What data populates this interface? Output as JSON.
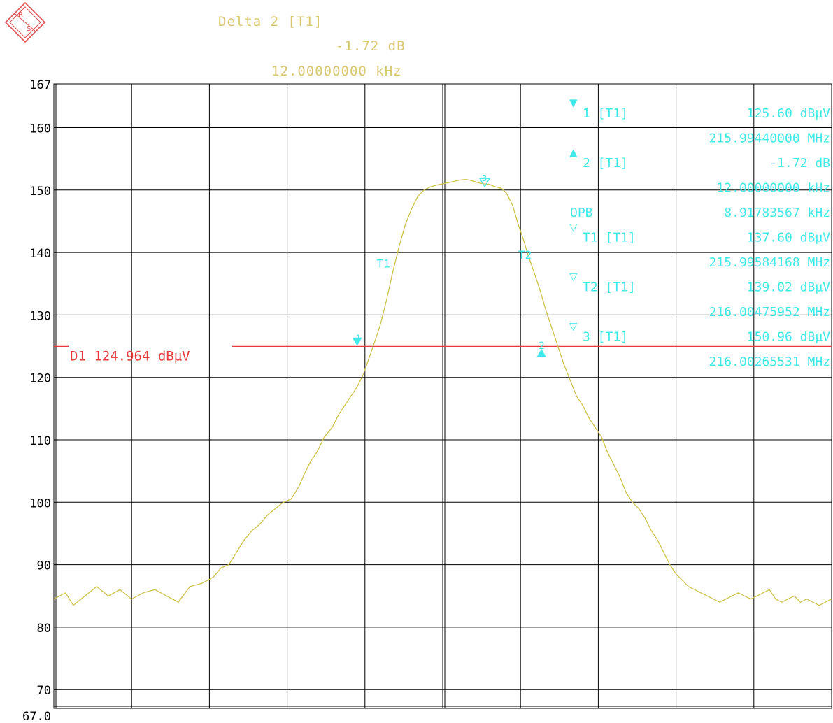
{
  "colors": {
    "header": "#d9c76e",
    "trace": "#cfc24a",
    "marker": "#40e8ea",
    "display_line": "#e83a3a",
    "grid": "#000000",
    "axis_text": "#000000",
    "logo": "#e65050"
  },
  "logo": {
    "text": "R&S",
    "icon": "rohde-schwarz-logo"
  },
  "header": {
    "line1": "Delta 2 [T1]",
    "line2": "-1.72 dB",
    "line3": "12.00000000 kHz"
  },
  "display_line": {
    "label": "D1 124.964 dBµV",
    "level": 124.964
  },
  "marker_info": [
    {
      "symbol": "▼",
      "name": "1 [T1]",
      "value": "125.60 dBµV",
      "sub": "215.99440000 MHz"
    },
    {
      "symbol": "▲",
      "name": "2 [T1]",
      "value": "-1.72 dB",
      "sub": "12.00000000 kHz"
    },
    {
      "symbol": "",
      "name": "OPB",
      "value": "8.91783567 kHz",
      "sub": ""
    },
    {
      "symbol": "▽",
      "name": "T1 [T1]",
      "value": "137.60 dBµV",
      "sub": "215.99584168 MHz"
    },
    {
      "symbol": "▽",
      "name": "T2 [T1]",
      "value": "139.02 dBµV",
      "sub": "216.00475952 MHz"
    },
    {
      "symbol": "▽",
      "name": "3 [T1]",
      "value": "150.96 dBµV",
      "sub": "216.00265531 MHz"
    }
  ],
  "chart_data": {
    "type": "line",
    "title": "",
    "xlabel": "",
    "ylabel": "",
    "ylim": [
      67.0,
      167
    ],
    "xlim": [
      0,
      1000
    ],
    "y_ticks": [
      70,
      80,
      90,
      100,
      110,
      120,
      130,
      140,
      150,
      160,
      167
    ],
    "y_tick_labels": [
      "70",
      "80",
      "90",
      "100",
      "110",
      "120",
      "130",
      "140",
      "150",
      "160",
      "167"
    ],
    "y_bottom_label": "67.0",
    "grid": true,
    "legend": "none",
    "series": [
      {
        "x": [
          0,
          15,
          25,
          40,
          55,
          70,
          85,
          100,
          115,
          130,
          145,
          160,
          175,
          190,
          205,
          215,
          225,
          235,
          245,
          255,
          265,
          275,
          285,
          295,
          305,
          315,
          322,
          330,
          338,
          348,
          358,
          366,
          374,
          382,
          390,
          398,
          405,
          412,
          420,
          428,
          436,
          444,
          452,
          460,
          468,
          476,
          484,
          492,
          500,
          508,
          515,
          522,
          530,
          537,
          545,
          552,
          560,
          568,
          575,
          582,
          590,
          597,
          604,
          610,
          617,
          625,
          632,
          640,
          648,
          656,
          664,
          672,
          680,
          688,
          696,
          704,
          712,
          720,
          728,
          736,
          744,
          752,
          760,
          768,
          776,
          784,
          792,
          800,
          808,
          816,
          824,
          832,
          840,
          848,
          856,
          864,
          872,
          880,
          888,
          896,
          904,
          912,
          920,
          928,
          936,
          944,
          952,
          960,
          968,
          976,
          984,
          992,
          1000
        ],
        "y": [
          84.5,
          85.5,
          83.5,
          85,
          86.5,
          85,
          86,
          84.5,
          85.5,
          86,
          85,
          84,
          86.5,
          87,
          88,
          89.5,
          90,
          92,
          94,
          95.5,
          96.5,
          98,
          99,
          100,
          100.5,
          102.5,
          104.5,
          106.5,
          108,
          110.5,
          112,
          114,
          115.5,
          117,
          118.5,
          120.5,
          123,
          125.5,
          128.5,
          132.5,
          137,
          141,
          144.5,
          147,
          149,
          150,
          150.5,
          150.8,
          151,
          151.2,
          151.4,
          151.6,
          151.7,
          151.5,
          151.2,
          151,
          150.9,
          150.5,
          150.3,
          149.5,
          147.5,
          144.5,
          142,
          139.5,
          137,
          134,
          131,
          128,
          125,
          122,
          119.5,
          117,
          115.5,
          113.5,
          112,
          110.5,
          108,
          106,
          104,
          101.5,
          100,
          99,
          97.5,
          95.5,
          94,
          92,
          90,
          88.5,
          87.5,
          86.5,
          86,
          85.5,
          85,
          84.5,
          84,
          84.5,
          85,
          85.5,
          85,
          84.5,
          85,
          85.5,
          86,
          84.5,
          84,
          84.5,
          85,
          84,
          84.5,
          84,
          83.5,
          84,
          84.5
        ]
      }
    ],
    "markers": [
      {
        "label": "1",
        "shape": "down-filled",
        "x": 390,
        "y": 125.6
      },
      {
        "label": "2",
        "shape": "up-filled",
        "x": 627,
        "y": 123.9
      },
      {
        "label": "3",
        "shape": "down-open",
        "x": 554,
        "y": 150.96
      },
      {
        "label": "T1",
        "shape": "text",
        "x": 415,
        "y": 137.6
      },
      {
        "label": "T2",
        "shape": "text",
        "x": 597,
        "y": 139.02
      }
    ]
  }
}
